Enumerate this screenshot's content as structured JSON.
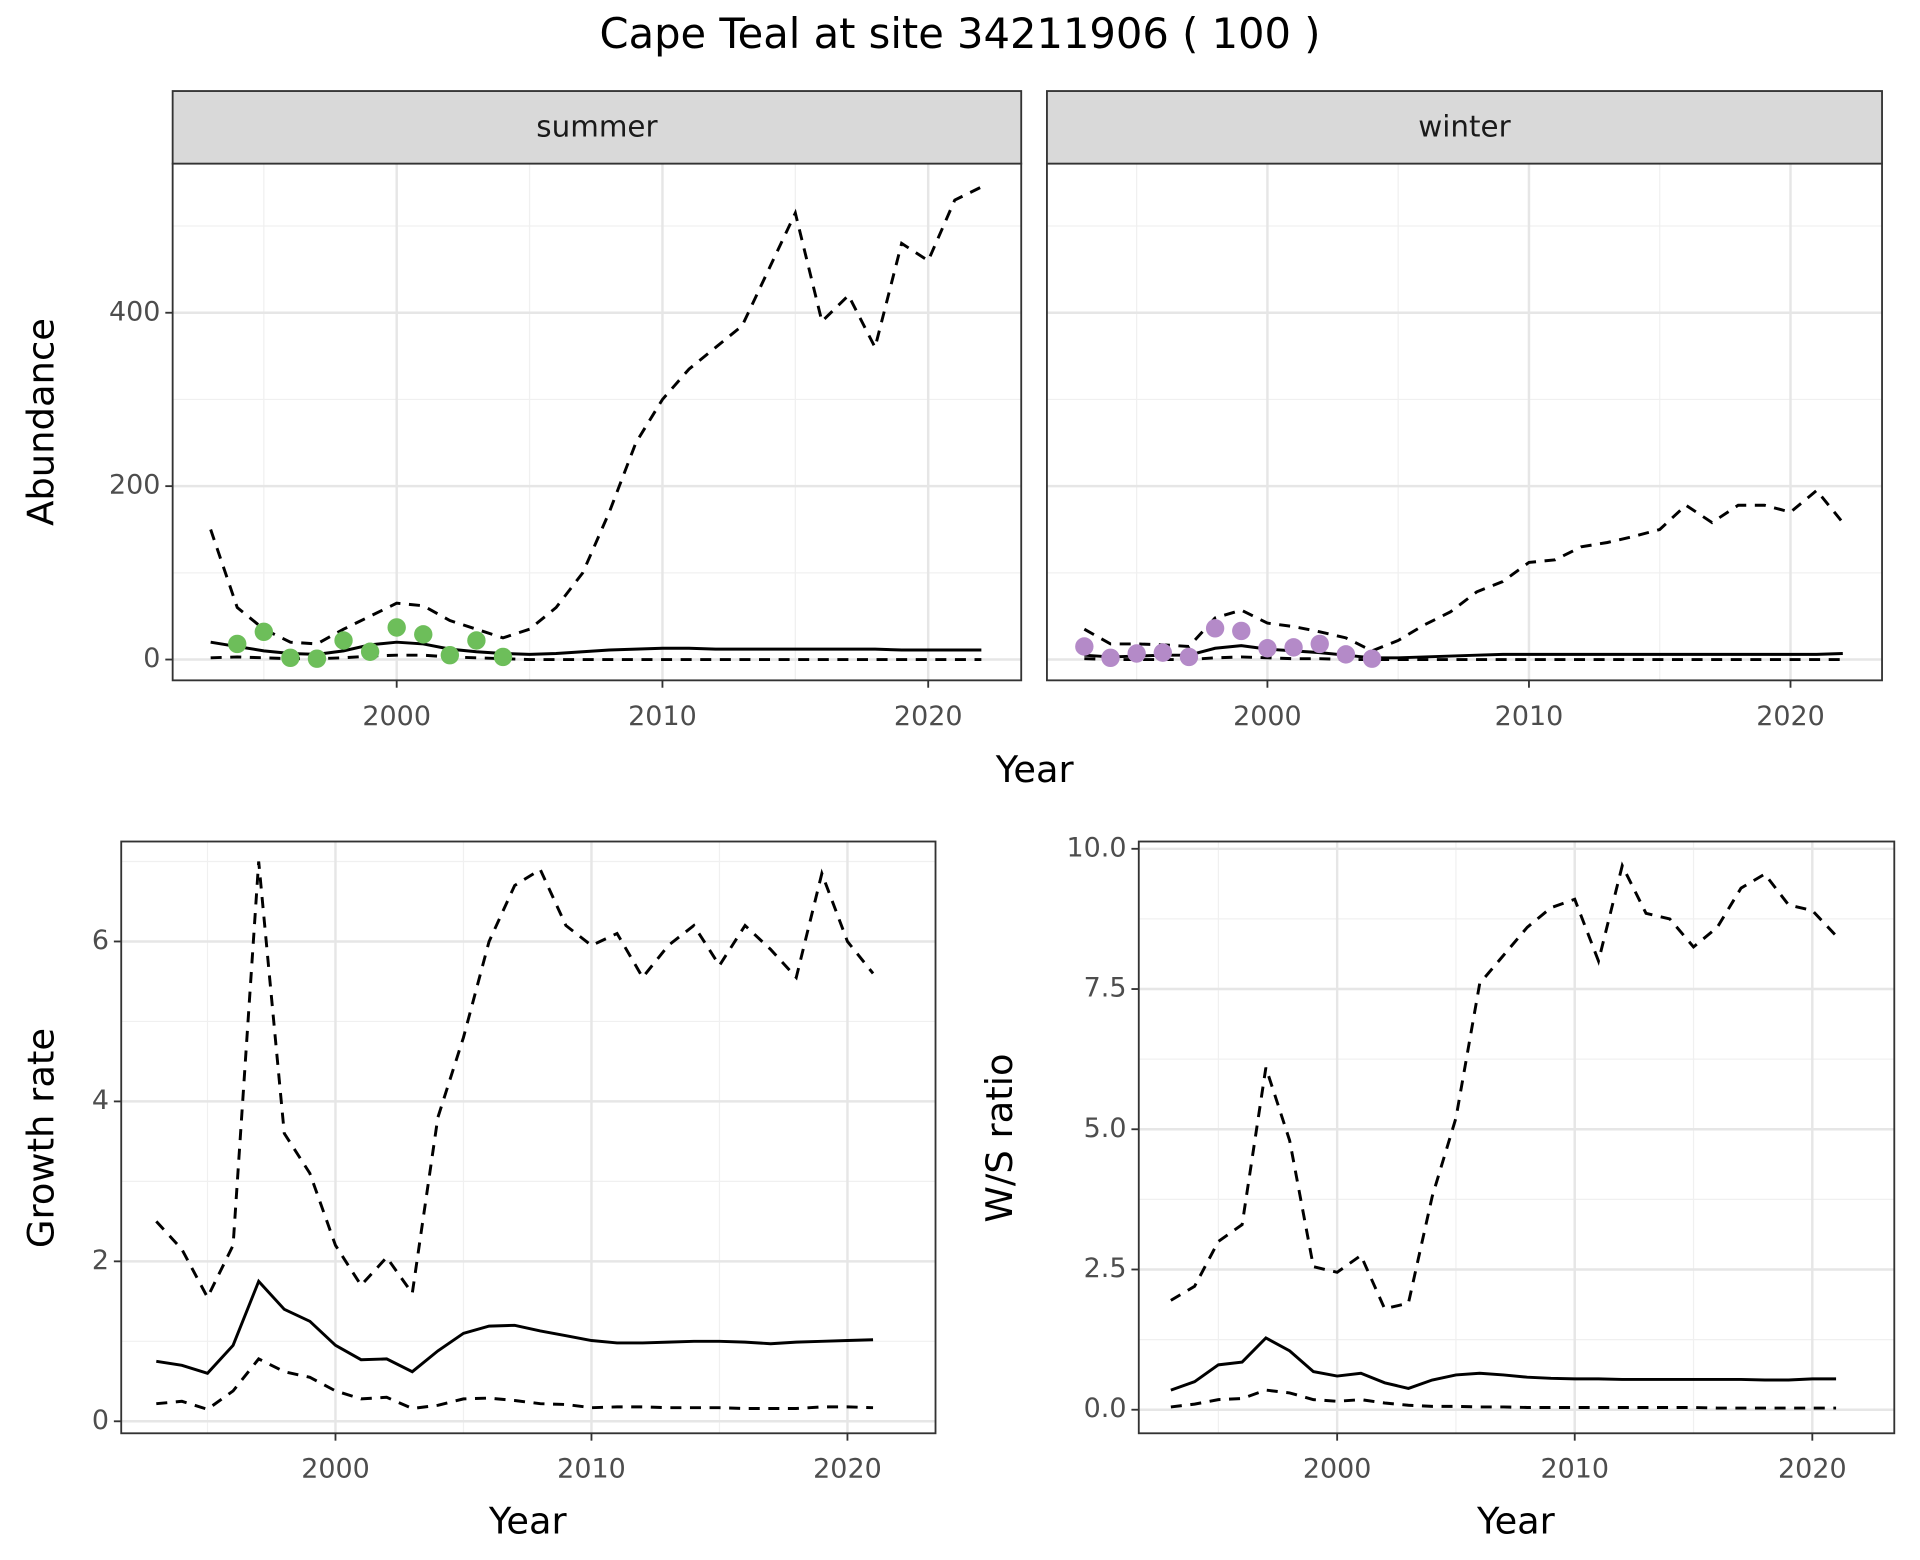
{
  "title": "Cape Teal at site 34211906 ( 100 )",
  "chart_data": [
    {
      "type": "line",
      "ylabel": "Abundance",
      "xlabel": "Year",
      "x": [
        1993,
        1994,
        1995,
        1996,
        1997,
        1998,
        1999,
        2000,
        2001,
        2002,
        2003,
        2004,
        2005,
        2006,
        2007,
        2008,
        2009,
        2010,
        2011,
        2012,
        2013,
        2014,
        2015,
        2016,
        2017,
        2018,
        2019,
        2020,
        2021,
        2022
      ],
      "xlim": [
        1991.57,
        2023.5
      ],
      "ylim": [
        -24,
        572
      ],
      "xticks": [
        2000,
        2010,
        2020
      ],
      "yticks": [
        0,
        200,
        400
      ],
      "grid": true,
      "panels": [
        {
          "title": "summer",
          "series": [
            {
              "style": "dashed",
              "values": [
                150,
                60,
                35,
                20,
                18,
                35,
                50,
                65,
                62,
                45,
                35,
                25,
                35,
                60,
                100,
                170,
                250,
                300,
                335,
                360,
                385,
                450,
                515,
                390,
                420,
                360,
                480,
                460,
                530,
                545
              ]
            },
            {
              "style": "solid",
              "values": [
                20,
                15,
                10,
                7,
                6,
                10,
                17,
                20,
                18,
                12,
                9,
                7,
                6,
                7,
                9,
                11,
                12,
                13,
                13,
                12,
                12,
                12,
                12,
                12,
                12,
                12,
                11,
                11,
                11,
                11
              ]
            },
            {
              "style": "dashed",
              "values": [
                2,
                3,
                2,
                1,
                1,
                2,
                4,
                5,
                5,
                3,
                2,
                1,
                0,
                0,
                0,
                0,
                0,
                0,
                0,
                0,
                0,
                0,
                0,
                0,
                0,
                0,
                0,
                0,
                0,
                0
              ]
            }
          ],
          "points": {
            "color": "#6dbe5a",
            "x": [
              1994,
              1995,
              1996,
              1997,
              1998,
              1999,
              2000,
              2001,
              2002,
              2003,
              2004
            ],
            "values": [
              18,
              32,
              2,
              1,
              22,
              9,
              37,
              29,
              5,
              22,
              3
            ]
          }
        },
        {
          "title": "winter",
          "series": [
            {
              "style": "dashed",
              "values": [
                35,
                18,
                18,
                17,
                15,
                48,
                57,
                42,
                38,
                32,
                25,
                10,
                22,
                40,
                55,
                78,
                90,
                112,
                115,
                130,
                135,
                142,
                150,
                178,
                158,
                178,
                178,
                170,
                195,
                158
              ]
            },
            {
              "style": "solid",
              "values": [
                5,
                3,
                4,
                5,
                5,
                13,
                16,
                12,
                10,
                8,
                5,
                2,
                2,
                3,
                4,
                5,
                6,
                6,
                6,
                6,
                6,
                6,
                6,
                6,
                6,
                6,
                6,
                6,
                6,
                7
              ]
            },
            {
              "style": "dashed",
              "values": [
                1,
                0,
                0,
                0,
                0,
                2,
                3,
                2,
                1,
                1,
                0,
                0,
                0,
                0,
                0,
                0,
                0,
                0,
                0,
                0,
                0,
                0,
                0,
                0,
                0,
                0,
                0,
                0,
                0,
                0
              ]
            }
          ],
          "points": {
            "color": "#b48ac8",
            "x": [
              1993,
              1994,
              1995,
              1996,
              1997,
              1998,
              1999,
              2000,
              2001,
              2002,
              2003,
              2004
            ],
            "values": [
              15,
              2,
              7,
              8,
              3,
              36,
              33,
              13,
              14,
              18,
              6,
              1
            ]
          }
        }
      ]
    },
    {
      "type": "line",
      "ylabel": "Growth rate",
      "xlabel": "Year",
      "x": [
        1993,
        1994,
        1995,
        1996,
        1997,
        1998,
        1999,
        2000,
        2001,
        2002,
        2003,
        2004,
        2005,
        2006,
        2007,
        2008,
        2009,
        2010,
        2011,
        2012,
        2013,
        2014,
        2015,
        2016,
        2017,
        2018,
        2019,
        2020,
        2021
      ],
      "xlim": [
        1991.63,
        2023.44
      ],
      "ylim": [
        -0.15,
        7.25
      ],
      "xticks": [
        2000,
        2010,
        2020
      ],
      "yticks": [
        0,
        2,
        4,
        6
      ],
      "grid": true,
      "series": [
        {
          "style": "dashed",
          "values": [
            2.5,
            2.15,
            1.55,
            2.2,
            7.0,
            3.6,
            3.1,
            2.2,
            1.7,
            2.05,
            1.6,
            3.8,
            4.8,
            6.0,
            6.7,
            6.9,
            6.2,
            5.95,
            6.1,
            5.55,
            5.95,
            6.2,
            5.7,
            6.2,
            5.9,
            5.55,
            6.85,
            6.0,
            5.6
          ]
        },
        {
          "style": "solid",
          "values": [
            0.75,
            0.7,
            0.6,
            0.95,
            1.75,
            1.4,
            1.25,
            0.95,
            0.77,
            0.78,
            0.62,
            0.88,
            1.1,
            1.19,
            1.2,
            1.13,
            1.07,
            1.01,
            0.98,
            0.98,
            0.99,
            1.0,
            1.0,
            0.99,
            0.97,
            0.99,
            1.0,
            1.01,
            1.02
          ]
        },
        {
          "style": "dashed",
          "values": [
            0.22,
            0.25,
            0.15,
            0.38,
            0.78,
            0.62,
            0.55,
            0.38,
            0.28,
            0.3,
            0.16,
            0.2,
            0.28,
            0.29,
            0.26,
            0.22,
            0.21,
            0.17,
            0.18,
            0.18,
            0.17,
            0.17,
            0.17,
            0.16,
            0.16,
            0.16,
            0.18,
            0.18,
            0.17
          ]
        }
      ]
    },
    {
      "type": "line",
      "ylabel": "W/S ratio",
      "xlabel": "Year",
      "x": [
        1993,
        1994,
        1995,
        1996,
        1997,
        1998,
        1999,
        2000,
        2001,
        2002,
        2003,
        2004,
        2005,
        2006,
        2007,
        2008,
        2009,
        2010,
        2011,
        2012,
        2013,
        2014,
        2015,
        2016,
        2017,
        2018,
        2019,
        2020,
        2021
      ],
      "xlim": [
        1991.65,
        2023.45
      ],
      "ylim": [
        -0.42,
        10.13
      ],
      "xticks": [
        2000,
        2010,
        2020
      ],
      "yticks": [
        {
          "value": 0,
          "label": "0.0"
        },
        2.5,
        {
          "value": 5,
          "label": "5.0"
        },
        7.5,
        {
          "value": 10,
          "label": "10.0"
        }
      ],
      "grid": true,
      "series": [
        {
          "style": "dashed",
          "values": [
            1.95,
            2.2,
            3.0,
            3.3,
            6.1,
            4.8,
            2.55,
            2.45,
            2.75,
            1.8,
            1.9,
            3.8,
            5.2,
            7.6,
            8.1,
            8.6,
            8.95,
            9.1,
            8.0,
            9.7,
            8.85,
            8.75,
            8.25,
            8.6,
            9.3,
            9.55,
            9.0,
            8.9,
            8.45
          ]
        },
        {
          "style": "solid",
          "values": [
            0.35,
            0.5,
            0.8,
            0.85,
            1.28,
            1.05,
            0.68,
            0.6,
            0.65,
            0.48,
            0.38,
            0.53,
            0.62,
            0.65,
            0.62,
            0.58,
            0.56,
            0.55,
            0.55,
            0.54,
            0.54,
            0.54,
            0.54,
            0.54,
            0.54,
            0.53,
            0.53,
            0.55,
            0.55
          ]
        },
        {
          "style": "dashed",
          "values": [
            0.05,
            0.1,
            0.18,
            0.2,
            0.35,
            0.3,
            0.18,
            0.15,
            0.18,
            0.12,
            0.08,
            0.06,
            0.06,
            0.05,
            0.05,
            0.04,
            0.04,
            0.04,
            0.04,
            0.04,
            0.04,
            0.04,
            0.04,
            0.03,
            0.03,
            0.03,
            0.03,
            0.03,
            0.03
          ]
        }
      ]
    }
  ]
}
